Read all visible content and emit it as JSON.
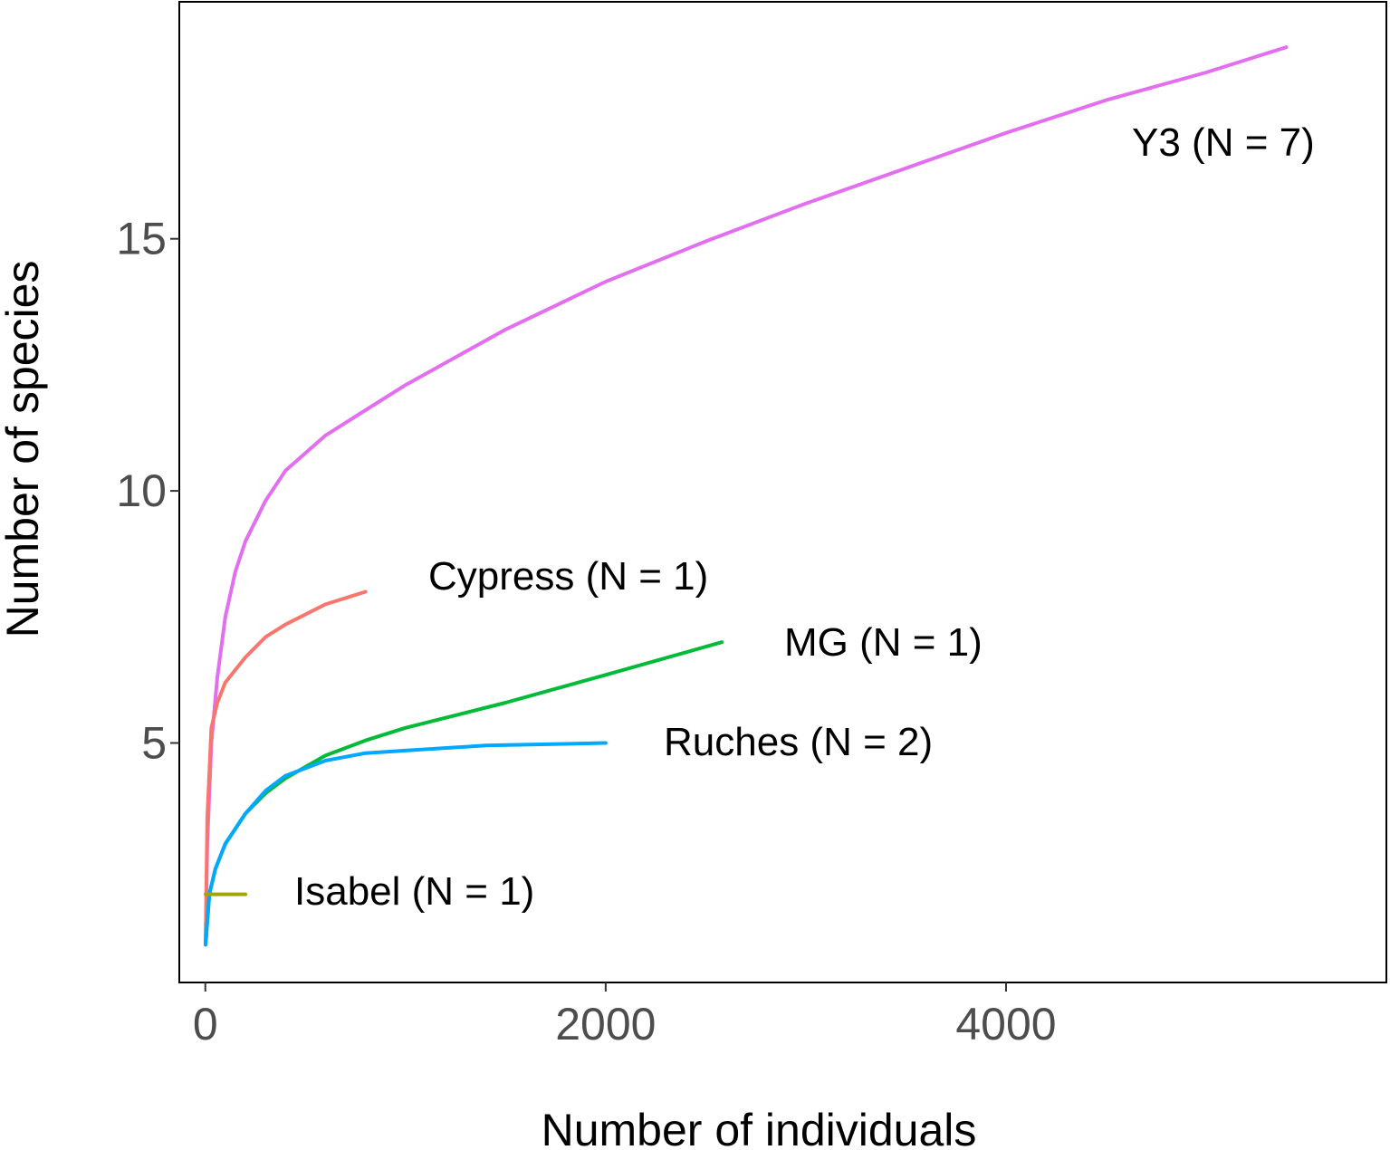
{
  "chart_data": {
    "type": "line",
    "title": "",
    "xlabel": "Number of individuals",
    "ylabel": "Number of species",
    "xlim": [
      -130,
      5900
    ],
    "ylim": [
      0.25,
      19.7
    ],
    "xticks": [
      0,
      2000,
      4000
    ],
    "xtick_labels": [
      "0",
      "2000",
      "4000"
    ],
    "yticks": [
      5,
      10,
      15
    ],
    "ytick_labels": [
      "5",
      "10",
      "15"
    ],
    "grid": false,
    "legend": "none",
    "series": [
      {
        "name": "Y3 (N = 7)",
        "color": "#e36ef0",
        "points": [
          [
            1,
            1
          ],
          [
            10,
            3
          ],
          [
            30,
            5
          ],
          [
            60,
            6.3
          ],
          [
            100,
            7.5
          ],
          [
            150,
            8.4
          ],
          [
            200,
            9.0
          ],
          [
            300,
            9.8
          ],
          [
            400,
            10.4
          ],
          [
            600,
            11.1
          ],
          [
            800,
            11.6
          ],
          [
            1000,
            12.1
          ],
          [
            1500,
            13.2
          ],
          [
            2000,
            14.15
          ],
          [
            2500,
            14.95
          ],
          [
            3000,
            15.7
          ],
          [
            3500,
            16.4
          ],
          [
            4000,
            17.1
          ],
          [
            4500,
            17.75
          ],
          [
            5000,
            18.3
          ],
          [
            5400,
            18.8
          ]
        ]
      },
      {
        "name": "Cypress (N = 1)",
        "color": "#f8766d",
        "points": [
          [
            1,
            1
          ],
          [
            10,
            3.5
          ],
          [
            30,
            5.3
          ],
          [
            60,
            5.8
          ],
          [
            100,
            6.2
          ],
          [
            200,
            6.7
          ],
          [
            300,
            7.1
          ],
          [
            400,
            7.35
          ],
          [
            600,
            7.75
          ],
          [
            800,
            8.0
          ]
        ]
      },
      {
        "name": "MG (N = 1)",
        "color": "#00ba38",
        "points": [
          [
            1,
            1
          ],
          [
            20,
            2
          ],
          [
            50,
            2.5
          ],
          [
            100,
            3.0
          ],
          [
            200,
            3.6
          ],
          [
            300,
            4.0
          ],
          [
            400,
            4.3
          ],
          [
            600,
            4.75
          ],
          [
            800,
            5.05
          ],
          [
            1000,
            5.3
          ],
          [
            1500,
            5.8
          ],
          [
            2000,
            6.35
          ],
          [
            2580,
            7.0
          ]
        ]
      },
      {
        "name": "Ruches (N = 2)",
        "color": "#00a9ff",
        "points": [
          [
            1,
            1
          ],
          [
            20,
            2
          ],
          [
            50,
            2.5
          ],
          [
            100,
            3.0
          ],
          [
            200,
            3.6
          ],
          [
            300,
            4.05
          ],
          [
            400,
            4.35
          ],
          [
            600,
            4.65
          ],
          [
            800,
            4.8
          ],
          [
            1000,
            4.85
          ],
          [
            1400,
            4.95
          ],
          [
            2000,
            5.0
          ]
        ]
      },
      {
        "name": "Isabel (N = 1)",
        "color": "#a3a500",
        "points": [
          [
            1,
            2
          ],
          [
            200,
            2
          ]
        ]
      }
    ]
  }
}
